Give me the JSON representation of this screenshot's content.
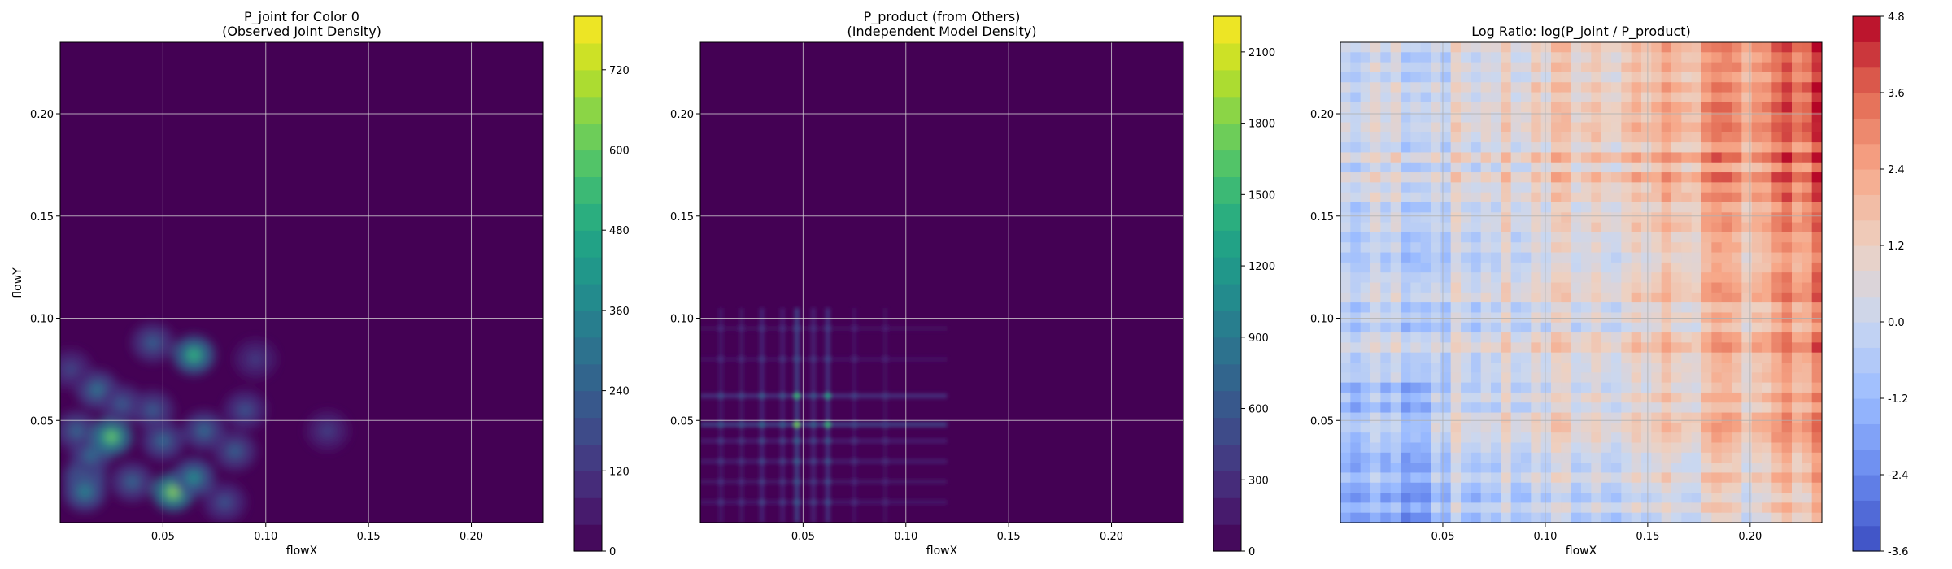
{
  "chart_data": [
    {
      "type": "heatmap",
      "title": "P_joint for Color 0\n(Observed Joint Density)",
      "xlabel": "flowX",
      "ylabel": "flowY",
      "xlim": [
        0.0,
        0.235
      ],
      "ylim": [
        0.0,
        0.235
      ],
      "x_ticks": [
        "0.05",
        "0.10",
        "0.15",
        "0.20"
      ],
      "y_ticks": [
        "0.05",
        "0.10",
        "0.15",
        "0.20"
      ],
      "grid": true,
      "colormap": "viridis",
      "background_color": "#440154",
      "colorbar": {
        "min": 0,
        "max": 800,
        "ticks": [
          "0",
          "120",
          "240",
          "360",
          "480",
          "600",
          "720"
        ]
      },
      "hotspots": [
        {
          "x": 0.012,
          "y": 0.022,
          "value": 420
        },
        {
          "x": 0.015,
          "y": 0.033,
          "value": 300
        },
        {
          "x": 0.008,
          "y": 0.045,
          "value": 280
        },
        {
          "x": 0.025,
          "y": 0.042,
          "value": 650
        },
        {
          "x": 0.018,
          "y": 0.065,
          "value": 330
        },
        {
          "x": 0.03,
          "y": 0.058,
          "value": 250
        },
        {
          "x": 0.012,
          "y": 0.015,
          "value": 380
        },
        {
          "x": 0.055,
          "y": 0.015,
          "value": 700
        },
        {
          "x": 0.065,
          "y": 0.022,
          "value": 420
        },
        {
          "x": 0.05,
          "y": 0.04,
          "value": 300
        },
        {
          "x": 0.045,
          "y": 0.055,
          "value": 250
        },
        {
          "x": 0.065,
          "y": 0.082,
          "value": 560
        },
        {
          "x": 0.045,
          "y": 0.088,
          "value": 260
        },
        {
          "x": 0.07,
          "y": 0.045,
          "value": 300
        },
        {
          "x": 0.085,
          "y": 0.035,
          "value": 260
        },
        {
          "x": 0.09,
          "y": 0.055,
          "value": 220
        },
        {
          "x": 0.13,
          "y": 0.045,
          "value": 160
        },
        {
          "x": 0.035,
          "y": 0.02,
          "value": 280
        },
        {
          "x": 0.08,
          "y": 0.01,
          "value": 220
        },
        {
          "x": 0.005,
          "y": 0.075,
          "value": 180
        },
        {
          "x": 0.095,
          "y": 0.08,
          "value": 150
        }
      ]
    },
    {
      "type": "heatmap",
      "title": "P_product (from Others)\n(Independent Model Density)",
      "xlabel": "flowX",
      "ylabel": "",
      "xlim": [
        0.0,
        0.235
      ],
      "ylim": [
        0.0,
        0.235
      ],
      "x_ticks": [
        "0.05",
        "0.10",
        "0.15",
        "0.20"
      ],
      "y_ticks": [
        "0.05",
        "0.10",
        "0.15",
        "0.20"
      ],
      "grid": true,
      "colormap": "viridis",
      "background_color": "#440154",
      "colorbar": {
        "min": 0,
        "max": 2250,
        "ticks": [
          "0",
          "300",
          "600",
          "900",
          "1200",
          "1500",
          "1800",
          "2100"
        ]
      },
      "x_bands": [
        {
          "x": 0.01,
          "value": 350
        },
        {
          "x": 0.02,
          "value": 300
        },
        {
          "x": 0.03,
          "value": 550
        },
        {
          "x": 0.04,
          "value": 450
        },
        {
          "x": 0.047,
          "value": 1100
        },
        {
          "x": 0.055,
          "value": 500
        },
        {
          "x": 0.062,
          "value": 800
        },
        {
          "x": 0.075,
          "value": 250
        },
        {
          "x": 0.09,
          "value": 200
        }
      ],
      "y_bands": [
        {
          "y": 0.01,
          "value": 350
        },
        {
          "y": 0.02,
          "value": 300
        },
        {
          "y": 0.03,
          "value": 400
        },
        {
          "y": 0.04,
          "value": 450
        },
        {
          "y": 0.048,
          "value": 1100
        },
        {
          "y": 0.062,
          "value": 800
        },
        {
          "y": 0.08,
          "value": 250
        },
        {
          "y": 0.095,
          "value": 200
        }
      ]
    },
    {
      "type": "heatmap",
      "title": "Log Ratio: log(P_joint / P_product)",
      "xlabel": "flowX",
      "ylabel": "",
      "xlim": [
        0.0,
        0.235
      ],
      "ylim": [
        0.0,
        0.235
      ],
      "x_ticks": [
        "0.05",
        "0.10",
        "0.15",
        "0.20"
      ],
      "y_ticks": [
        "0.05",
        "0.10",
        "0.15",
        "0.20"
      ],
      "grid": true,
      "colormap": "coolwarm",
      "colorbar": {
        "min": -3.6,
        "max": 4.8,
        "ticks": [
          "-3.6",
          "-2.4",
          "-1.2",
          "0.0",
          "1.2",
          "2.4",
          "3.6",
          "4.8"
        ]
      }
    }
  ]
}
